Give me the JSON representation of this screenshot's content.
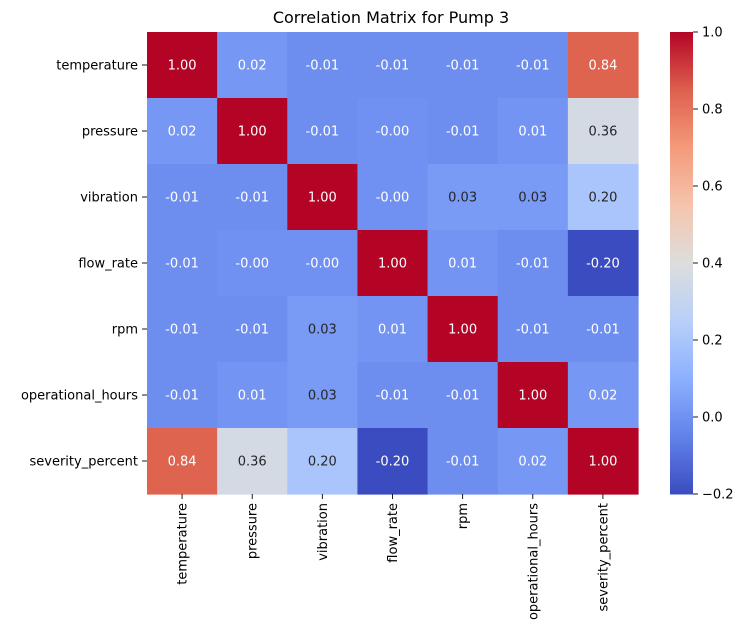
{
  "chart_data": {
    "type": "heatmap",
    "title": "Correlation Matrix for Pump 3",
    "row_labels": [
      "temperature",
      "pressure",
      "vibration",
      "flow_rate",
      "rpm",
      "operational_hours",
      "severity_percent"
    ],
    "col_labels": [
      "temperature",
      "pressure",
      "vibration",
      "flow_rate",
      "rpm",
      "operational_hours",
      "severity_percent"
    ],
    "values": [
      [
        1.0,
        0.02,
        -0.01,
        -0.01,
        -0.01,
        -0.01,
        0.84
      ],
      [
        0.02,
        1.0,
        -0.01,
        -0.0,
        -0.01,
        0.01,
        0.36
      ],
      [
        -0.01,
        -0.01,
        1.0,
        -0.0,
        0.03,
        0.03,
        0.2
      ],
      [
        -0.01,
        -0.0,
        -0.0,
        1.0,
        0.01,
        -0.01,
        -0.2
      ],
      [
        -0.01,
        -0.01,
        0.03,
        0.01,
        1.0,
        -0.01,
        -0.01
      ],
      [
        -0.01,
        0.01,
        0.03,
        -0.01,
        -0.01,
        1.0,
        0.02
      ],
      [
        0.84,
        0.36,
        0.2,
        -0.2,
        -0.01,
        0.02,
        1.0
      ]
    ],
    "annotations": [
      [
        "1.00",
        "0.02",
        "-0.01",
        "-0.01",
        "-0.01",
        "-0.01",
        "0.84"
      ],
      [
        "0.02",
        "1.00",
        "-0.01",
        "-0.00",
        "-0.01",
        "0.01",
        "0.36"
      ],
      [
        "-0.01",
        "-0.01",
        "1.00",
        "-0.00",
        "0.03",
        "0.03",
        "0.20"
      ],
      [
        "-0.01",
        "-0.00",
        "-0.00",
        "1.00",
        "0.01",
        "-0.01",
        "-0.20"
      ],
      [
        "-0.01",
        "-0.01",
        "0.03",
        "0.01",
        "1.00",
        "-0.01",
        "-0.01"
      ],
      [
        "-0.01",
        "0.01",
        "0.03",
        "-0.01",
        "-0.01",
        "1.00",
        "0.02"
      ],
      [
        "0.84",
        "0.36",
        "0.20",
        "-0.20",
        "-0.01",
        "0.02",
        "1.00"
      ]
    ],
    "colormap": "coolwarm",
    "vmin": -0.2,
    "vmax": 1.0,
    "colorbar_ticks": [
      -0.2,
      0.0,
      0.2,
      0.4,
      0.6,
      0.8,
      1.0
    ],
    "colorbar_tick_labels": [
      "−0.2",
      "0.0",
      "0.2",
      "0.4",
      "0.6",
      "0.8",
      "1.0"
    ],
    "xlabel": "",
    "ylabel": ""
  }
}
